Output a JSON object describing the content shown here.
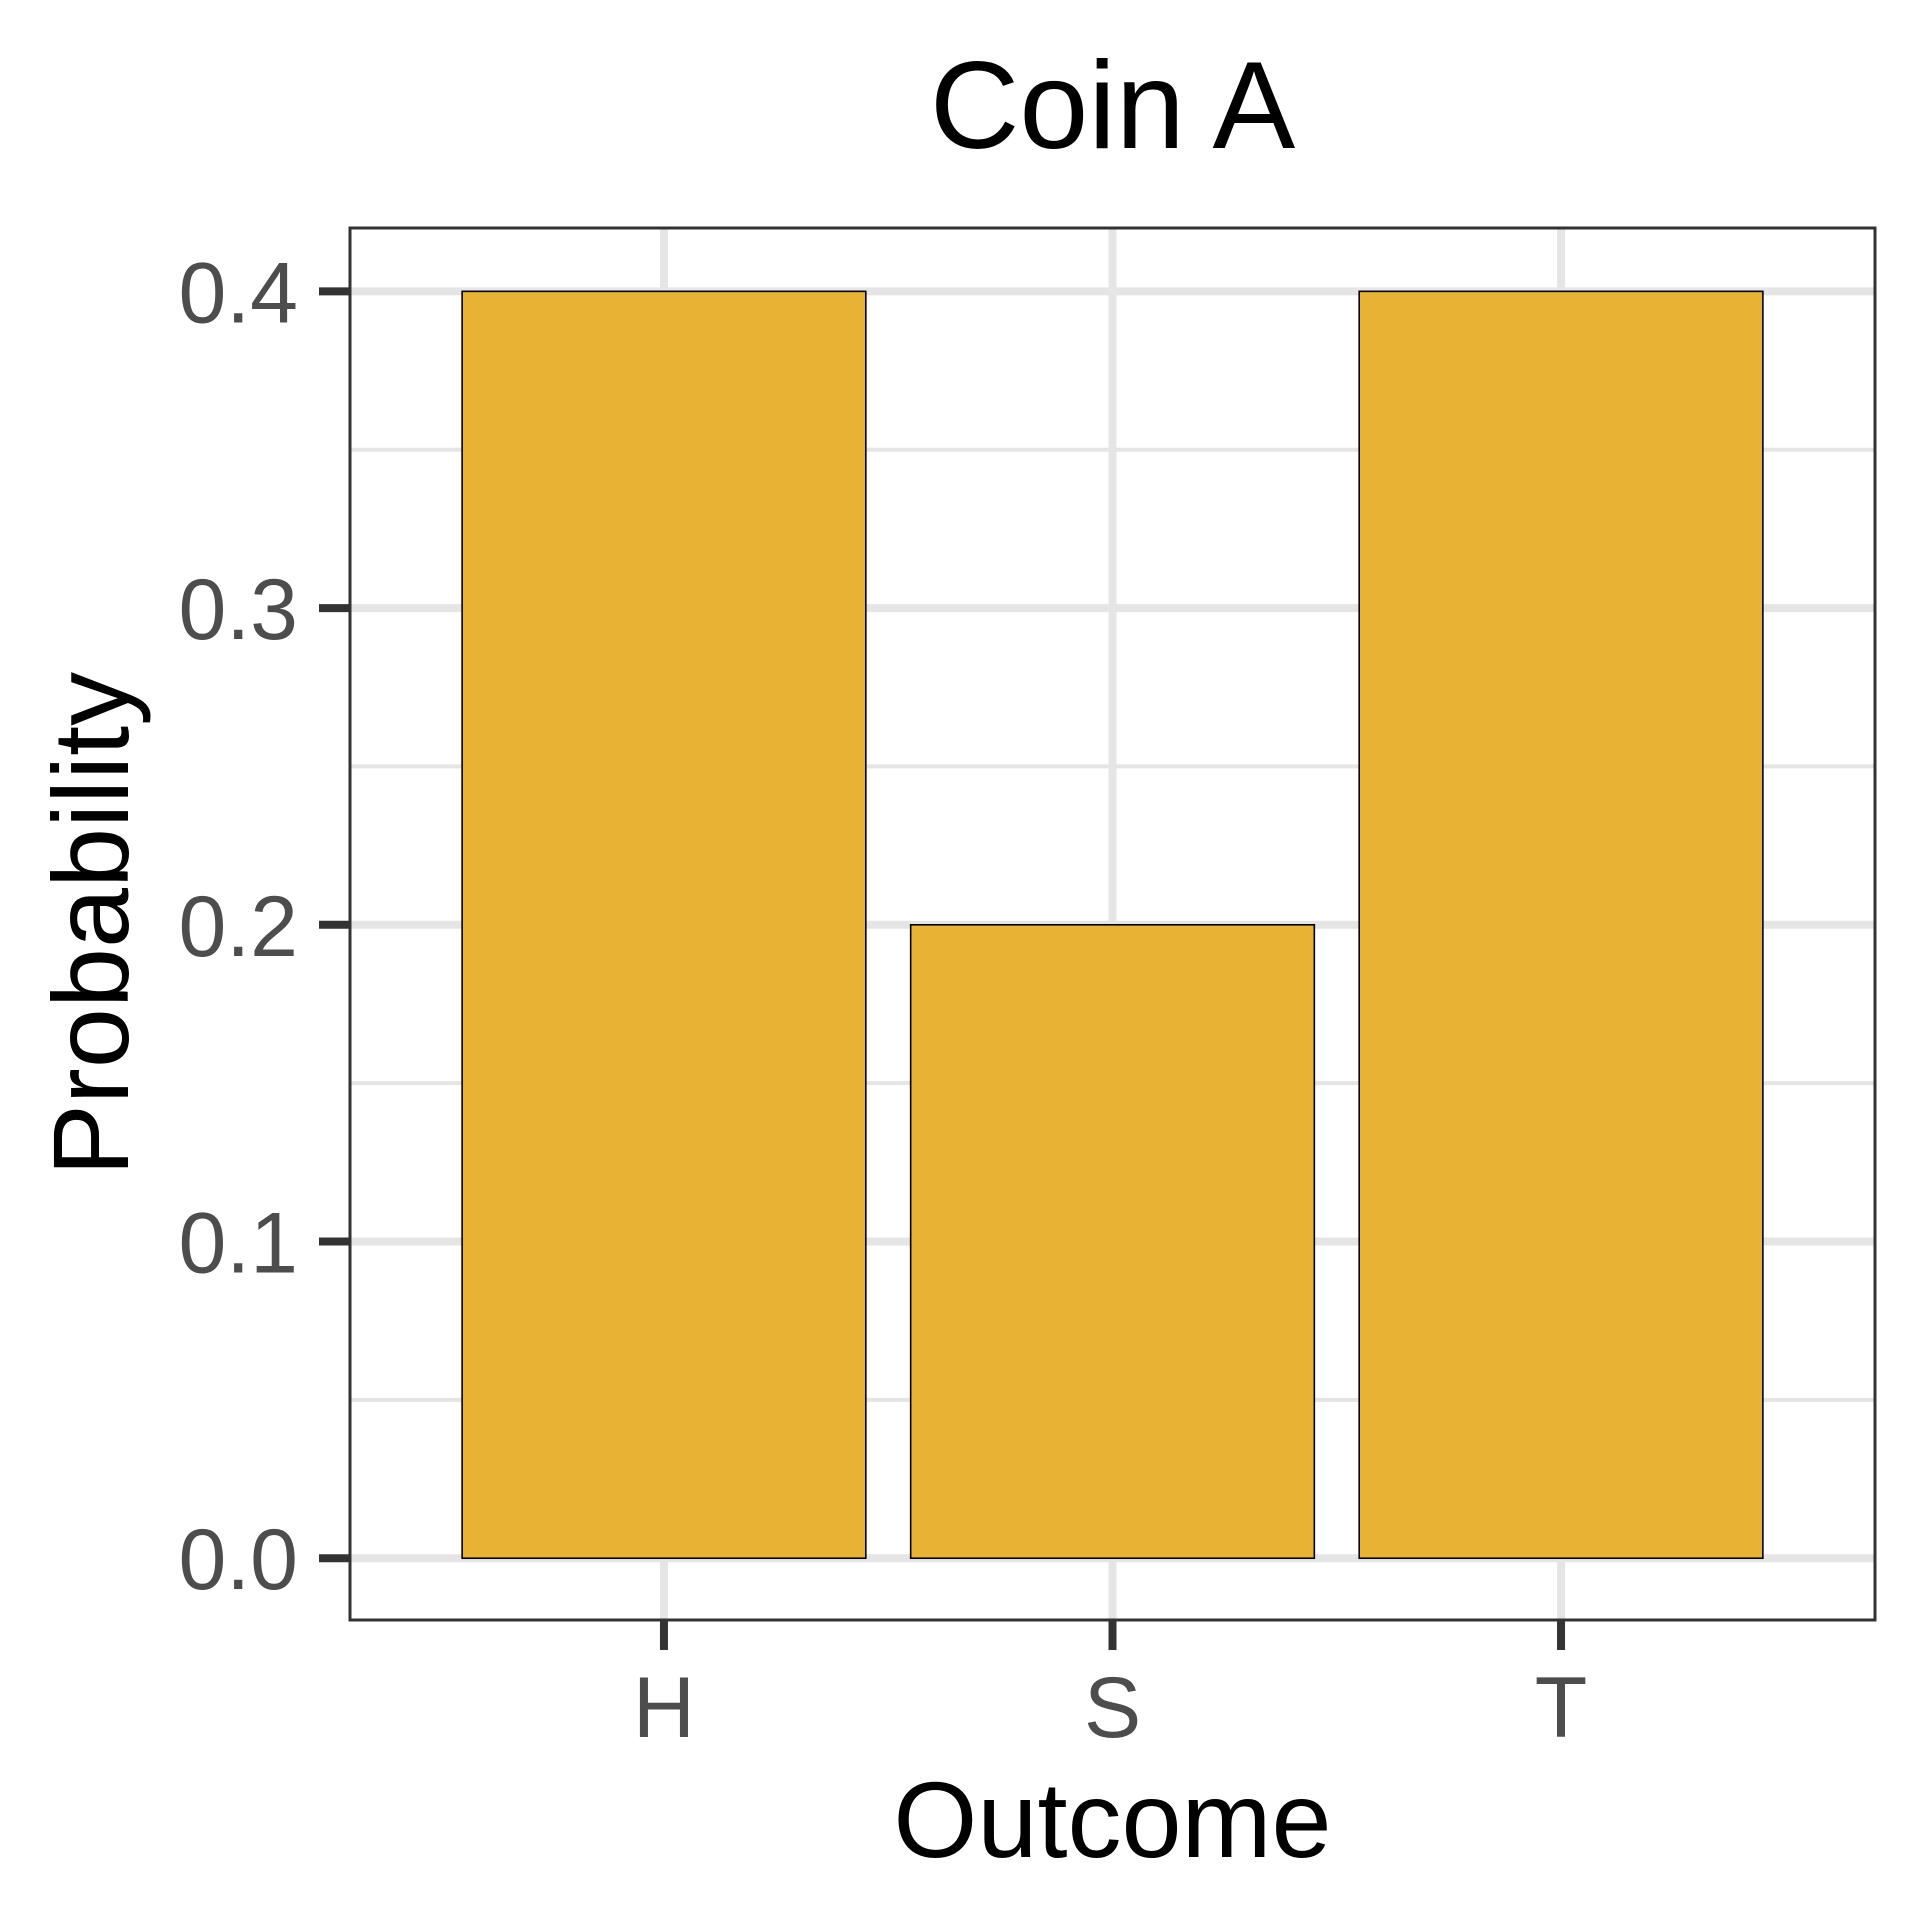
{
  "chart_data": {
    "type": "bar",
    "title": "Coin A",
    "xlabel": "Outcome",
    "ylabel": "Probability",
    "categories": [
      "H",
      "S",
      "T"
    ],
    "values": [
      0.4,
      0.2,
      0.4
    ],
    "ylim": [
      -0.0195,
      0.42
    ],
    "yticks": [
      0.0,
      0.1,
      0.2,
      0.3,
      0.4
    ],
    "ytick_labels": [
      "0.0",
      "0.1",
      "0.2",
      "0.3",
      "0.4"
    ],
    "minor_gridlines": [
      0.05,
      0.15,
      0.25,
      0.35
    ],
    "grid": true,
    "legend": "none",
    "bar_color": "#E8B334",
    "bar_edge_color": "#000000",
    "gridline_color": "#E5E5E5",
    "panel_border_color": "#333333"
  }
}
